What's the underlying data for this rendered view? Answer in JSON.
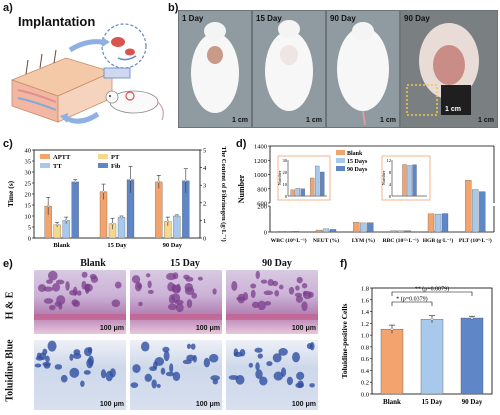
{
  "panel_labels": [
    "a)",
    "b)",
    "c)",
    "d)",
    "e)",
    "f)"
  ],
  "panel_a": {
    "title": "Implantation"
  },
  "panel_b": {
    "days": [
      "1 Day",
      "15 Day",
      "90 Day",
      "90 Day"
    ],
    "scale_labels": [
      "1 cm",
      "1 cm",
      "1 cm",
      "1 cm",
      "1 cm"
    ]
  },
  "panel_e": {
    "columns": [
      "Blank",
      "15 Day",
      "90 Day"
    ],
    "rows": [
      "H & E",
      "Toluidine Blue"
    ],
    "scale_label": "100 μm"
  },
  "chart_data": [
    {
      "id": "c",
      "type": "bar",
      "categories": [
        "Blank",
        "15 Day",
        "90 Day"
      ],
      "series": [
        {
          "name": "APTT",
          "values": [
            14.5,
            21,
            25.5
          ],
          "errors": [
            4,
            3.5,
            3
          ],
          "color": "#f2a36e"
        },
        {
          "name": "PT",
          "values": [
            6,
            6.5,
            7.5
          ],
          "errors": [
            1,
            2.5,
            2
          ],
          "color": "#f5d78e"
        },
        {
          "name": "TT",
          "values": [
            8,
            9.5,
            10
          ],
          "errors": [
            1.5,
            0.5,
            0.5
          ],
          "color": "#a8c8ec"
        },
        {
          "name": "Fib",
          "values": [
            25.5,
            26.5,
            26
          ],
          "errors": [
            1,
            6,
            5.5
          ],
          "color": "#5f86c7",
          "axis": "right",
          "right_values": [
            3.35,
            3.5,
            3.45
          ]
        }
      ],
      "ylabel": "Time (s)",
      "y2label": "The Content of Fibrinogen (g·L⁻¹)",
      "ylim": [
        0,
        40
      ],
      "yticks": [
        0,
        5,
        10,
        15,
        20,
        25,
        30,
        35,
        40
      ],
      "y2lim": [
        0,
        5
      ],
      "y2ticks": [
        0,
        1,
        2,
        3,
        4,
        5
      ],
      "legend": "top-left"
    },
    {
      "id": "d",
      "type": "bar",
      "categories": [
        "WBC (10⁹·L⁻¹)",
        "NEUT (%)",
        "LYM (%)",
        "RBC (10¹²·L⁻¹)",
        "HGB (g·L⁻¹)",
        "PLT (10⁹·L⁻¹)"
      ],
      "series": [
        {
          "name": "Blank",
          "values": [
            5.2,
            15,
            75,
            10.5,
            140,
            920
          ],
          "color": "#f2a36e"
        },
        {
          "name": "15 Days",
          "values": [
            6.5,
            25,
            70,
            10.2,
            138,
            790
          ],
          "color": "#a8c8ec"
        },
        {
          "name": "90 Days",
          "values": [
            6.0,
            20,
            72,
            10.4,
            142,
            760
          ],
          "color": "#5f86c7"
        }
      ],
      "ylabel": "Number",
      "ylim": [
        0,
        1400
      ],
      "yticks": [
        0,
        200,
        400,
        600,
        800,
        1000,
        1200,
        1400
      ],
      "axis_break": [
        200,
        600
      ],
      "legend": "top-right",
      "inset_left": {
        "ylabel": "Number",
        "ylim": [
          0,
          30
        ],
        "yticks": [
          0,
          10,
          20,
          30
        ]
      },
      "inset_right": {
        "ylabel": "Number",
        "ylim": [
          0,
          12
        ],
        "yticks": [
          0,
          4,
          8,
          12
        ]
      }
    },
    {
      "id": "f",
      "type": "bar",
      "categories": [
        "Blank",
        "15 Day",
        "90 Day"
      ],
      "values": [
        1.1,
        1.27,
        1.29
      ],
      "errors": [
        0.07,
        0.06,
        0.03
      ],
      "colors": [
        "#f2a36e",
        "#a8c8ec",
        "#5f86c7"
      ],
      "ylabel": "Toluidine-positive Cells",
      "ylim": [
        0,
        1.8
      ],
      "yticks": [
        0.0,
        0.2,
        0.4,
        0.6,
        0.8,
        1.0,
        1.2,
        1.4,
        1.6,
        1.8
      ],
      "annotations": [
        "* (p=0.0379)",
        "** (p=0.0079)"
      ]
    }
  ]
}
